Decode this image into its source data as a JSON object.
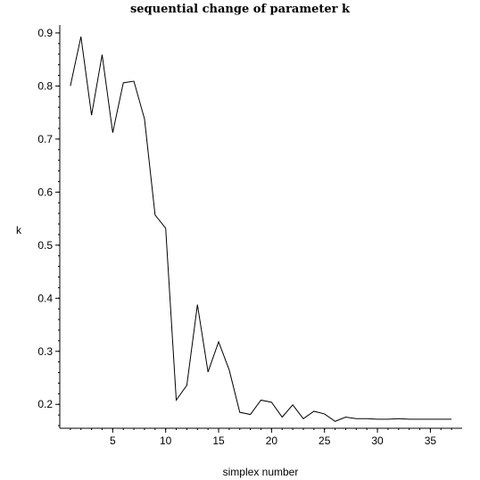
{
  "chart_data": {
    "type": "line",
    "title": "sequential change of parameter k",
    "xlabel": "simplex number",
    "ylabel": "k",
    "xlim": [
      0,
      38
    ],
    "ylim": [
      0.155,
      0.915
    ],
    "x_ticks": [
      5,
      10,
      15,
      20,
      25,
      30,
      35
    ],
    "y_ticks": [
      0.2,
      0.3,
      0.4,
      0.5,
      0.6,
      0.7,
      0.8,
      0.9
    ],
    "grid": false,
    "series": [
      {
        "color": "#000000",
        "x": [
          1,
          2,
          3,
          4,
          5,
          6,
          7,
          8,
          9,
          10,
          11,
          12,
          13,
          14,
          15,
          16,
          17,
          18,
          19,
          20,
          21,
          22,
          23,
          24,
          25,
          26,
          27,
          28,
          29,
          30,
          31,
          32,
          33,
          34,
          35,
          36,
          37
        ],
        "y": [
          0.8,
          0.893,
          0.745,
          0.859,
          0.712,
          0.806,
          0.809,
          0.738,
          0.557,
          0.532,
          0.208,
          0.236,
          0.388,
          0.261,
          0.318,
          0.265,
          0.185,
          0.181,
          0.208,
          0.204,
          0.176,
          0.199,
          0.173,
          0.187,
          0.182,
          0.168,
          0.176,
          0.173,
          0.173,
          0.172,
          0.172,
          0.173,
          0.172,
          0.172,
          0.172,
          0.172,
          0.172
        ]
      }
    ]
  }
}
